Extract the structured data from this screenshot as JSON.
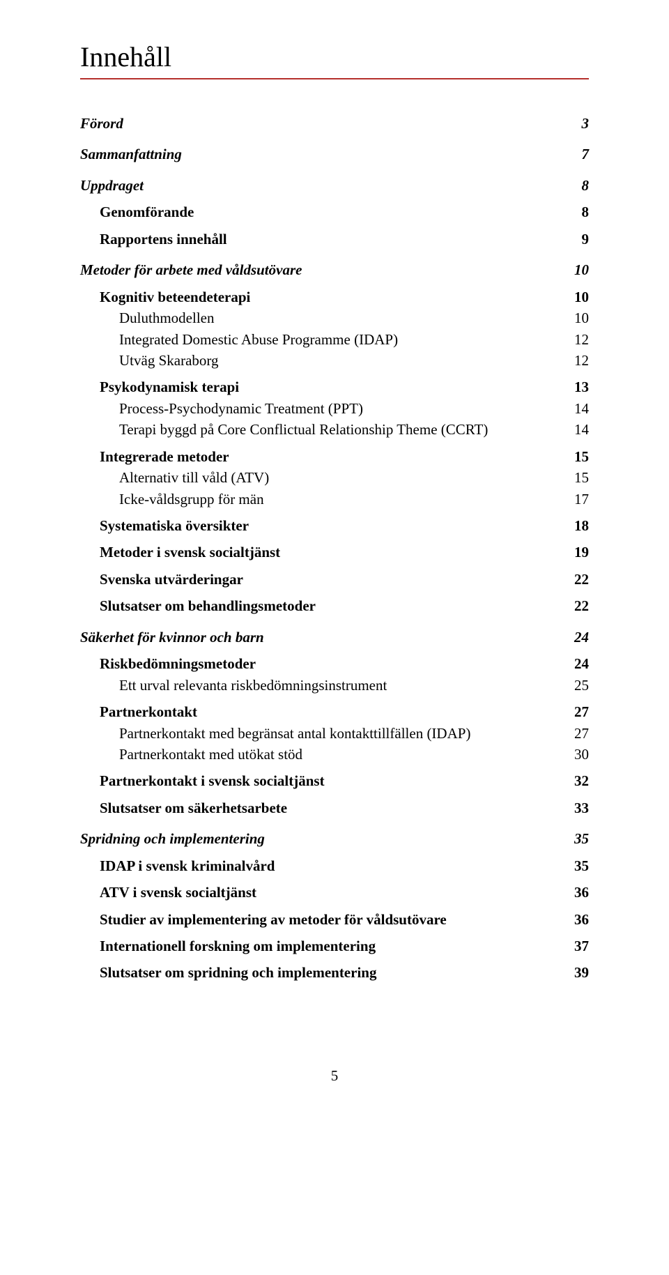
{
  "title": "Innehåll",
  "title_rule_color": "#b52f2b",
  "page_number": "5",
  "toc": [
    {
      "label": "Förord",
      "page": "3",
      "level": 1
    },
    {
      "label": "Sammanfattning",
      "page": "7",
      "level": 1
    },
    {
      "label": "Uppdraget",
      "page": "8",
      "level": 1
    },
    {
      "label": "Genomförande",
      "page": "8",
      "level": 2
    },
    {
      "label": "Rapportens innehåll",
      "page": "9",
      "level": 2
    },
    {
      "label": "Metoder för arbete med våldsutövare",
      "page": "10",
      "level": 1
    },
    {
      "label": "Kognitiv beteendeterapi",
      "page": "10",
      "level": 2
    },
    {
      "label": "Duluthmodellen",
      "page": "10",
      "level": 3
    },
    {
      "label": "Integrated Domestic Abuse Programme (IDAP)",
      "page": "12",
      "level": 3
    },
    {
      "label": "Utväg Skaraborg",
      "page": "12",
      "level": 3
    },
    {
      "label": "Psykodynamisk terapi",
      "page": "13",
      "level": 2
    },
    {
      "label": "Process-Psychodynamic Treatment (PPT)",
      "page": "14",
      "level": 3
    },
    {
      "label": "Terapi byggd på Core Conflictual Relationship Theme (CCRT)",
      "page": "14",
      "level": 3
    },
    {
      "label": "Integrerade metoder",
      "page": "15",
      "level": 2
    },
    {
      "label": "Alternativ till våld (ATV)",
      "page": "15",
      "level": 3
    },
    {
      "label": "Icke-våldsgrupp för män",
      "page": "17",
      "level": 3
    },
    {
      "label": "Systematiska översikter",
      "page": "18",
      "level": 2
    },
    {
      "label": "Metoder i svensk socialtjänst",
      "page": "19",
      "level": 2
    },
    {
      "label": "Svenska utvärderingar",
      "page": "22",
      "level": 2
    },
    {
      "label": "Slutsatser om behandlingsmetoder",
      "page": "22",
      "level": 2
    },
    {
      "label": "Säkerhet för kvinnor och barn",
      "page": "24",
      "level": 1
    },
    {
      "label": "Riskbedömningsmetoder",
      "page": "24",
      "level": 2
    },
    {
      "label": "Ett urval relevanta riskbedömningsinstrument",
      "page": "25",
      "level": 3
    },
    {
      "label": "Partnerkontakt",
      "page": "27",
      "level": 2
    },
    {
      "label": "Partnerkontakt med begränsat antal kontakttillfällen (IDAP)",
      "page": "27",
      "level": 3
    },
    {
      "label": "Partnerkontakt med utökat stöd",
      "page": "30",
      "level": 3
    },
    {
      "label": "Partnerkontakt i svensk socialtjänst",
      "page": "32",
      "level": 2
    },
    {
      "label": "Slutsatser om säkerhetsarbete",
      "page": "33",
      "level": 2
    },
    {
      "label": "Spridning och implementering",
      "page": "35",
      "level": 1
    },
    {
      "label": "IDAP i svensk kriminalvård",
      "page": "35",
      "level": 2
    },
    {
      "label": "ATV i svensk socialtjänst",
      "page": "36",
      "level": 2
    },
    {
      "label": "Studier av implementering av metoder för våldsutövare",
      "page": "36",
      "level": 2
    },
    {
      "label": "Internationell forskning om implementering",
      "page": "37",
      "level": 2
    },
    {
      "label": "Slutsatser om spridning och implementering",
      "page": "39",
      "level": 2
    }
  ]
}
